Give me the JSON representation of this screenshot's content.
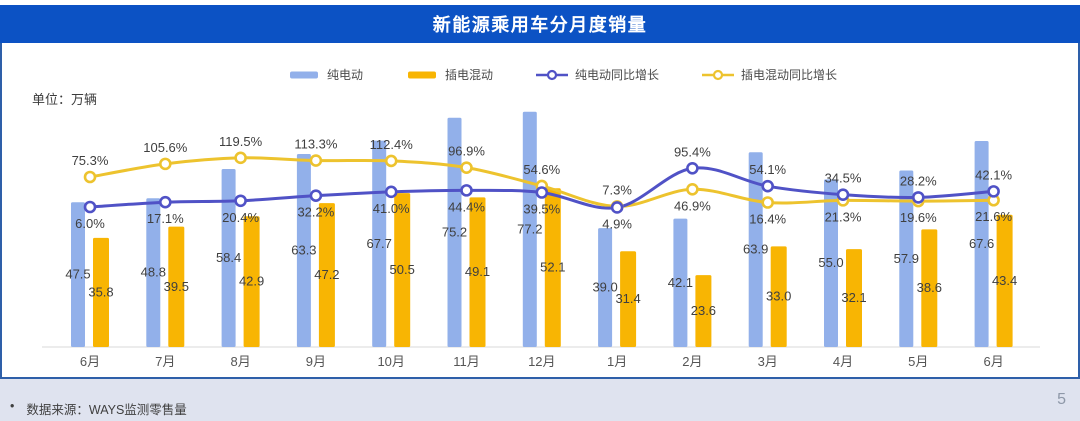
{
  "title": "新能源乘用车分月度销量",
  "unit_label": "单位：万辆",
  "footer": {
    "source_bullet": "•",
    "source_text": "数据来源：WAYS监测零售量",
    "page_number": "5"
  },
  "colors": {
    "banner": "#0C52C4",
    "bev_bar": "#92B0EA",
    "phev_bar": "#F8B503",
    "bev_line": "#5052C6",
    "phev_line": "#EDC32E",
    "marker_fill": "#FFFFFF",
    "label_text": "#3F3F3F",
    "month_text": "#555555",
    "axis_line": "#D8D8D8"
  },
  "legend": [
    {
      "id": "bev-bar",
      "label": "纯电动",
      "swatch": "bar",
      "color": "bev_bar"
    },
    {
      "id": "phev-bar",
      "label": "插电混动",
      "swatch": "bar",
      "color": "phev_bar"
    },
    {
      "id": "bev-line",
      "label": "纯电动同比增长",
      "swatch": "line",
      "color": "bev_line"
    },
    {
      "id": "phev-line",
      "label": "插电混动同比增长",
      "swatch": "line",
      "color": "phev_line"
    }
  ],
  "chart_data": {
    "type": "bar+line combo",
    "unit": "万辆",
    "categories": [
      "6月",
      "7月",
      "8月",
      "9月",
      "10月",
      "11月",
      "12月",
      "1月",
      "2月",
      "3月",
      "4月",
      "5月",
      "6月"
    ],
    "series": [
      {
        "name": "纯电动",
        "type": "bar",
        "unit": "万辆",
        "values": [
          47.5,
          48.8,
          58.4,
          63.3,
          67.7,
          75.2,
          77.2,
          39.0,
          42.1,
          63.9,
          55.0,
          57.9,
          67.6
        ]
      },
      {
        "name": "插电混动",
        "type": "bar",
        "unit": "万辆",
        "values": [
          35.8,
          39.5,
          42.9,
          47.2,
          50.5,
          49.1,
          52.1,
          31.4,
          23.6,
          33.0,
          32.1,
          38.6,
          43.4
        ]
      },
      {
        "name": "纯电动同比增长",
        "type": "line",
        "unit": "%",
        "values": [
          6.0,
          17.1,
          20.4,
          32.2,
          41.0,
          44.4,
          39.5,
          4.9,
          95.4,
          54.1,
          34.5,
          28.2,
          42.1
        ]
      },
      {
        "name": "插电混动同比增长",
        "type": "line",
        "unit": "%",
        "values": [
          75.3,
          105.6,
          119.5,
          113.3,
          112.4,
          96.9,
          54.6,
          7.3,
          46.9,
          16.4,
          21.3,
          19.6,
          21.6
        ]
      }
    ],
    "layout_hints": {
      "legend_position": "top-center",
      "grid": false,
      "value_axes_visible": false,
      "data_labels": true
    }
  }
}
